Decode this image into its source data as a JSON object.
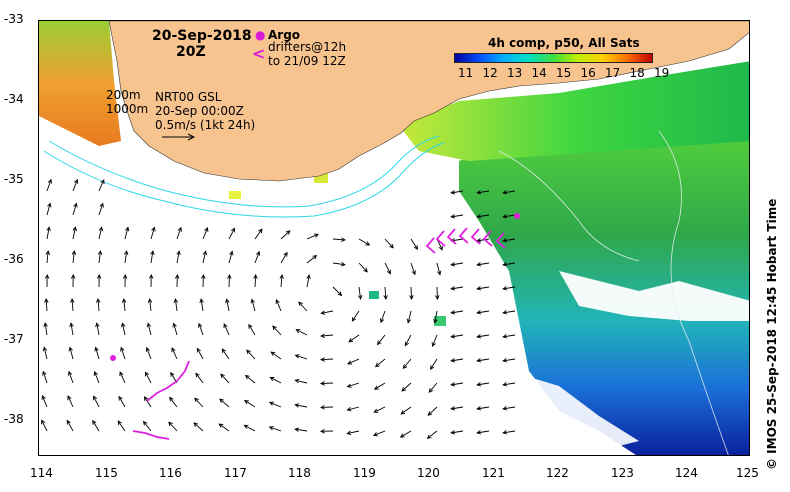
{
  "header": {
    "date": "20-Sep-2018",
    "time": "20Z"
  },
  "legend": {
    "argo_label": "Argo",
    "drifters_line1": "drifters@12h",
    "drifters_line2": "to 21/09 12Z",
    "drifter_symbol": "<"
  },
  "contours": {
    "label_200": "200m",
    "label_1000": "1000m"
  },
  "currents": {
    "line1": "NRT00 GSL",
    "line2": "20-Sep 00:00Z",
    "line3": "0.5m/s (1kt 24h)"
  },
  "colorbar": {
    "title": "4h comp, p50, All Sats",
    "ticks": [
      "11",
      "12",
      "13",
      "14",
      "15",
      "16",
      "17",
      "18",
      "19"
    ]
  },
  "axes": {
    "lat_labels": [
      "-33",
      "-34",
      "-35",
      "-36",
      "-37",
      "-38"
    ],
    "lon_labels": [
      "114",
      "115",
      "116",
      "117",
      "118",
      "119",
      "120",
      "121",
      "122",
      "123",
      "124",
      "125"
    ]
  },
  "credit": "© IMOS 25-Sep-2018 12:45 Hobart Time",
  "colors": {
    "land": "#f7c490",
    "argo": "#e020e0",
    "isobath": "#2fd8e8",
    "arrows": "#000000"
  }
}
